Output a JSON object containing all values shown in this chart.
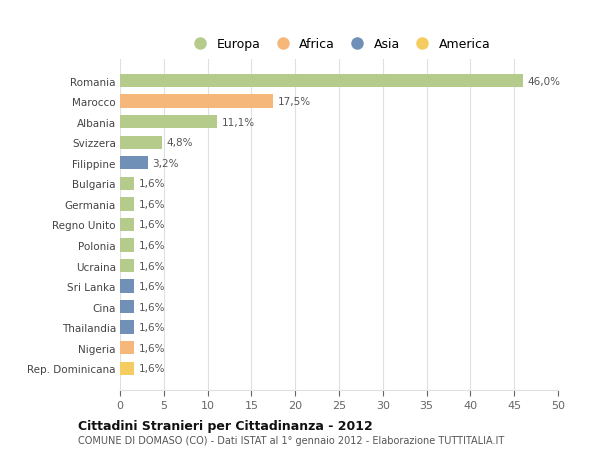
{
  "countries": [
    "Romania",
    "Marocco",
    "Albania",
    "Svizzera",
    "Filippine",
    "Bulgaria",
    "Germania",
    "Regno Unito",
    "Polonia",
    "Ucraina",
    "Sri Lanka",
    "Cina",
    "Thailandia",
    "Nigeria",
    "Rep. Dominicana"
  ],
  "values": [
    46.0,
    17.5,
    11.1,
    4.8,
    3.2,
    1.6,
    1.6,
    1.6,
    1.6,
    1.6,
    1.6,
    1.6,
    1.6,
    1.6,
    1.6
  ],
  "labels": [
    "46,0%",
    "17,5%",
    "11,1%",
    "4,8%",
    "3,2%",
    "1,6%",
    "1,6%",
    "1,6%",
    "1,6%",
    "1,6%",
    "1,6%",
    "1,6%",
    "1,6%",
    "1,6%",
    "1,6%"
  ],
  "colors": [
    "#b5cb8b",
    "#f5b87a",
    "#b5cb8b",
    "#b5cb8b",
    "#7090b8",
    "#b5cb8b",
    "#b5cb8b",
    "#b5cb8b",
    "#b5cb8b",
    "#b5cb8b",
    "#7090b8",
    "#7090b8",
    "#7090b8",
    "#f5b87a",
    "#f5cc60"
  ],
  "continent_colors": {
    "Europa": "#b5cb8b",
    "Africa": "#f5b87a",
    "Asia": "#7090b8",
    "America": "#f5cc60"
  },
  "title": "Cittadini Stranieri per Cittadinanza - 2012",
  "subtitle": "COMUNE DI DOMASO (CO) - Dati ISTAT al 1° gennaio 2012 - Elaborazione TUTTITALIA.IT",
  "xlim": [
    0,
    50
  ],
  "xticks": [
    0,
    5,
    10,
    15,
    20,
    25,
    30,
    35,
    40,
    45,
    50
  ],
  "background_color": "#ffffff",
  "plot_bg_color": "#ffffff",
  "grid_color": "#e0e0e0",
  "bar_height": 0.65
}
